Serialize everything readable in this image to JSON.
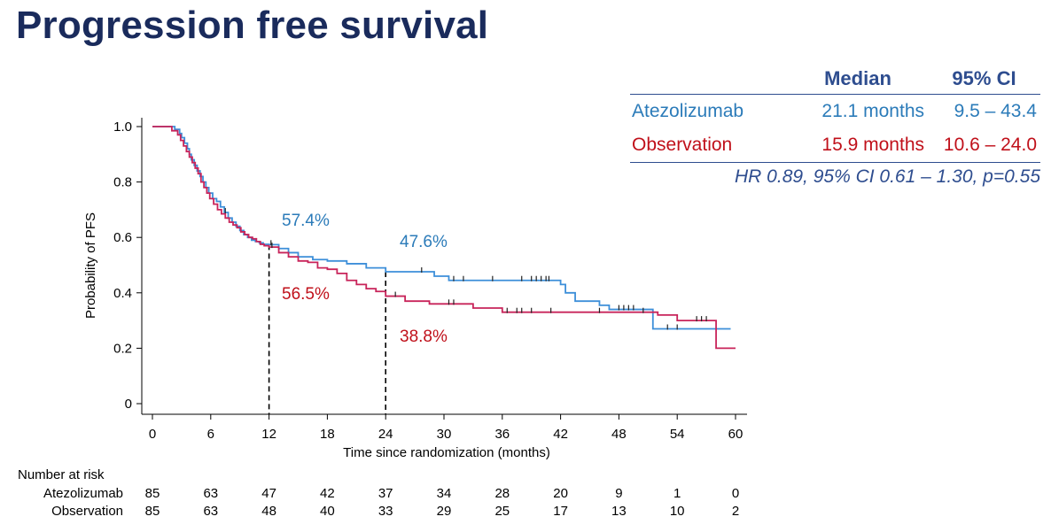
{
  "title": "Progression free survival",
  "summary_table": {
    "headers": [
      "",
      "Median",
      "95% CI"
    ],
    "rows": [
      {
        "arm": "Atezolizumab",
        "median": "21.1 months",
        "ci": "9.5 – 43.4",
        "color": "#2b7bb9"
      },
      {
        "arm": "Observation",
        "median": "15.9 months",
        "ci": "10.6 – 24.0",
        "color": "#c0101a"
      }
    ],
    "footnote": "HR 0.89, 95% CI 0.61 – 1.30, p=0.55"
  },
  "chart_data": {
    "type": "line",
    "subtype": "kaplan-meier step",
    "xlabel": "Time since randomization (months)",
    "ylabel": "Probability of PFS",
    "xlim": [
      0,
      60
    ],
    "ylim": [
      0,
      1
    ],
    "xticks": [
      0,
      6,
      12,
      18,
      24,
      30,
      36,
      42,
      48,
      54,
      60
    ],
    "yticks": [
      0,
      0.2,
      0.4,
      0.6,
      0.8,
      1.0
    ],
    "ytick_labels": [
      "0",
      "0.2",
      "0.4",
      "0.6",
      "0.8",
      "1.0"
    ],
    "grid": false,
    "series": [
      {
        "name": "Atezolizumab",
        "color": "#3d8fd9",
        "x": [
          0,
          2.3,
          2.8,
          3.0,
          3.3,
          3.6,
          3.8,
          4.0,
          4.3,
          4.6,
          4.9,
          5.2,
          5.5,
          5.8,
          6.2,
          6.6,
          7.0,
          7.4,
          7.8,
          8.2,
          8.6,
          9.0,
          9.4,
          9.8,
          10.2,
          10.6,
          11.0,
          11.4,
          12.0,
          13.0,
          14.0,
          15.0,
          16.5,
          18.0,
          20.0,
          22.0,
          24.0,
          25.5,
          27.5,
          29.0,
          30.5,
          32.0,
          34.0,
          36.0,
          38.0,
          40.0,
          42.0,
          42.5,
          43.5,
          46.0,
          47.0,
          48.5,
          50.0,
          51.5,
          52.5,
          54.0,
          56.0,
          57.5,
          59.5
        ],
        "y": [
          1.0,
          0.99,
          0.975,
          0.96,
          0.94,
          0.92,
          0.9,
          0.88,
          0.86,
          0.84,
          0.82,
          0.8,
          0.78,
          0.76,
          0.74,
          0.73,
          0.71,
          0.69,
          0.67,
          0.655,
          0.64,
          0.625,
          0.61,
          0.6,
          0.59,
          0.585,
          0.58,
          0.575,
          0.574,
          0.56,
          0.545,
          0.53,
          0.52,
          0.515,
          0.505,
          0.49,
          0.476,
          0.476,
          0.476,
          0.46,
          0.445,
          0.445,
          0.445,
          0.445,
          0.445,
          0.445,
          0.43,
          0.4,
          0.37,
          0.355,
          0.34,
          0.34,
          0.34,
          0.27,
          0.27,
          0.27,
          0.27,
          0.27,
          0.27
        ],
        "censor_x": [
          7.5,
          12.2,
          27.7,
          31.0,
          32.0,
          35.0,
          38.0,
          39.0,
          39.5,
          40.0,
          40.5,
          40.8,
          48.0,
          48.5,
          49.0,
          49.5,
          53.0,
          54.0
        ],
        "landmarks": [
          {
            "x": 12,
            "y": 0.574,
            "label": "57.4%"
          },
          {
            "x": 24,
            "y": 0.476,
            "label": "47.6%"
          }
        ]
      },
      {
        "name": "Observation",
        "color": "#c8245a",
        "x": [
          0,
          2.0,
          2.6,
          2.9,
          3.2,
          3.5,
          3.8,
          4.1,
          4.4,
          4.7,
          5.0,
          5.3,
          5.6,
          5.9,
          6.3,
          6.7,
          7.1,
          7.5,
          7.9,
          8.3,
          8.7,
          9.1,
          9.5,
          9.9,
          10.3,
          10.7,
          11.1,
          11.5,
          12.0,
          13.0,
          14.0,
          15.0,
          16.0,
          17.0,
          18.0,
          19.0,
          20.0,
          21.0,
          22.0,
          23.0,
          24.0,
          26.0,
          28.5,
          30.0,
          33.0,
          36.0,
          38.0,
          42.0,
          46.0,
          48.0,
          50.0,
          52.0,
          54.0,
          56.0,
          58.0,
          60.0
        ],
        "y": [
          1.0,
          0.985,
          0.97,
          0.95,
          0.93,
          0.91,
          0.89,
          0.87,
          0.85,
          0.83,
          0.8,
          0.78,
          0.76,
          0.74,
          0.72,
          0.7,
          0.685,
          0.67,
          0.655,
          0.645,
          0.635,
          0.62,
          0.61,
          0.6,
          0.595,
          0.585,
          0.575,
          0.57,
          0.565,
          0.545,
          0.53,
          0.515,
          0.51,
          0.49,
          0.485,
          0.47,
          0.445,
          0.43,
          0.415,
          0.405,
          0.388,
          0.37,
          0.36,
          0.36,
          0.345,
          0.33,
          0.33,
          0.33,
          0.33,
          0.33,
          0.33,
          0.32,
          0.3,
          0.3,
          0.2,
          0.2
        ],
        "censor_x": [
          12.3,
          25.0,
          30.5,
          31.0,
          36.5,
          37.5,
          38.0,
          39.0,
          41.0,
          46.0,
          50.5,
          56.0,
          56.5,
          57.0
        ],
        "landmarks": [
          {
            "x": 12,
            "y": 0.565,
            "label": "56.5%"
          },
          {
            "x": 24,
            "y": 0.388,
            "label": "38.8%"
          }
        ]
      }
    ],
    "landmark_lines_x": [
      12,
      24
    ],
    "number_at_risk": {
      "title": "Number at risk",
      "times": [
        0,
        6,
        12,
        18,
        24,
        30,
        36,
        42,
        48,
        54,
        60
      ],
      "rows": [
        {
          "name": "Atezolizumab",
          "values": [
            85,
            63,
            47,
            42,
            37,
            34,
            28,
            20,
            9,
            1,
            0
          ]
        },
        {
          "name": "Observation",
          "values": [
            85,
            63,
            48,
            40,
            33,
            29,
            25,
            17,
            13,
            10,
            2
          ]
        }
      ]
    },
    "label_colors": {
      "Atezolizumab": "#2b7bb9",
      "Observation": "#c0101a"
    }
  }
}
